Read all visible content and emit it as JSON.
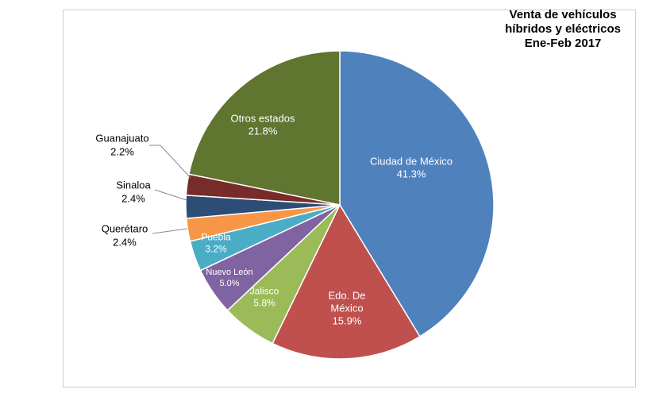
{
  "chart_data": {
    "type": "pie",
    "title_lines": [
      "Venta de vehículos",
      "híbridos y eléctricos",
      "Ene-Feb 2017"
    ],
    "slices": [
      {
        "label": "Ciudad de México",
        "value": 41.3,
        "display": "41.3%",
        "color": "#4f81bd",
        "label_color": "#ffffff"
      },
      {
        "label": "Edo. De México",
        "value": 15.9,
        "display": "15.9%",
        "color": "#c0504d",
        "label_color": "#ffffff"
      },
      {
        "label": "Jalisco",
        "value": 5.8,
        "display": "5.8%",
        "color": "#9bbb59",
        "label_color": "#ffffff"
      },
      {
        "label": "Nuevo León",
        "value": 5.0,
        "display": "5.0%",
        "color": "#8064a2",
        "label_color": "#ffffff"
      },
      {
        "label": "Puebla",
        "value": 3.2,
        "display": "3.2%",
        "color": "#4bacc6",
        "label_color": "#ffffff"
      },
      {
        "label": "Querétaro",
        "value": 2.4,
        "display": "2.4%",
        "color": "#f79646",
        "label_color": "#000000"
      },
      {
        "label": "Sinaloa",
        "value": 2.4,
        "display": "2.4%",
        "color": "#2c4d75",
        "label_color": "#000000"
      },
      {
        "label": "Guanajuato",
        "value": 2.2,
        "display": "2.2%",
        "color": "#772c2a",
        "label_color": "#000000"
      },
      {
        "label": "Otros estados",
        "value": 21.8,
        "display": "21.8%",
        "color": "#5f7530",
        "label_color": "#ffffff"
      }
    ]
  }
}
